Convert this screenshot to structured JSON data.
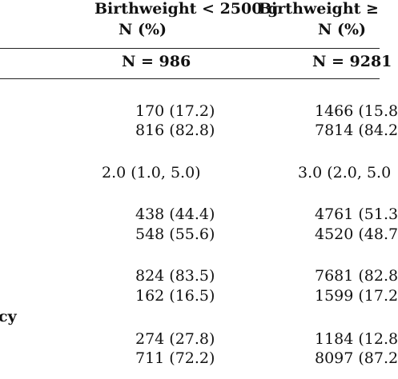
{
  "header": {
    "col1_line1": "Birthweight < 2500 g",
    "col1_line2": "N (%)",
    "col2_line1": "Birthweight ≥",
    "col2_line2": "N (%)"
  },
  "totals": {
    "col1": "N = 986",
    "col2": "N = 9281"
  },
  "rows": [
    {
      "col1": "170 (17.2)",
      "col2": "1466 (15.8"
    },
    {
      "col1": "816 (82.8)",
      "col2": "7814 (84.2"
    },
    {
      "col1": "2.0 (1.0, 5.0)",
      "col2": "3.0 (2.0, 5.0"
    },
    {
      "col1": "438 (44.4)",
      "col2": "4761 (51.3"
    },
    {
      "col1": "548 (55.6)",
      "col2": "4520 (48.7"
    },
    {
      "col1": "824 (83.5)",
      "col2": "7681 (82.8"
    },
    {
      "col1": "162 (16.5)",
      "col2": "1599 (17.2"
    },
    {
      "col1": "274 (27.8)",
      "col2": "1184 (12.8"
    },
    {
      "col1": "711 (72.2)",
      "col2": "8097 (87.2"
    }
  ],
  "row_label_fragment": "cy"
}
